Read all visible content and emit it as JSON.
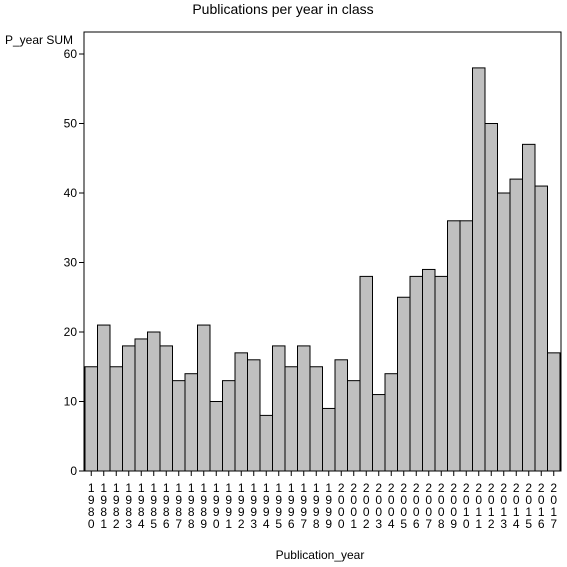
{
  "chart_data": {
    "type": "bar",
    "title": "Publications per year in class",
    "xlabel": "Publication_year",
    "ylabel": "P_year SUM",
    "ylim": [
      0,
      60
    ],
    "yticks": [
      0,
      10,
      20,
      30,
      40,
      50,
      60
    ],
    "grid": false,
    "legend": "none",
    "bar_color": "#c0c0c0",
    "edge_color": "#000000",
    "categories": [
      "1980",
      "1981",
      "1982",
      "1983",
      "1984",
      "1985",
      "1986",
      "1987",
      "1988",
      "1989",
      "1990",
      "1991",
      "1992",
      "1993",
      "1994",
      "1995",
      "1996",
      "1997",
      "1998",
      "1999",
      "2000",
      "2001",
      "2002",
      "2003",
      "2004",
      "2005",
      "2006",
      "2007",
      "2008",
      "2009",
      "2010",
      "2011",
      "2012",
      "2013",
      "2014",
      "2015",
      "2016",
      "2017"
    ],
    "values": [
      15,
      21,
      15,
      18,
      19,
      20,
      18,
      13,
      14,
      21,
      10,
      13,
      17,
      16,
      8,
      18,
      15,
      18,
      15,
      9,
      16,
      13,
      28,
      11,
      14,
      25,
      28,
      29,
      28,
      36,
      36,
      58,
      50,
      40,
      42,
      47,
      41,
      17
    ]
  }
}
